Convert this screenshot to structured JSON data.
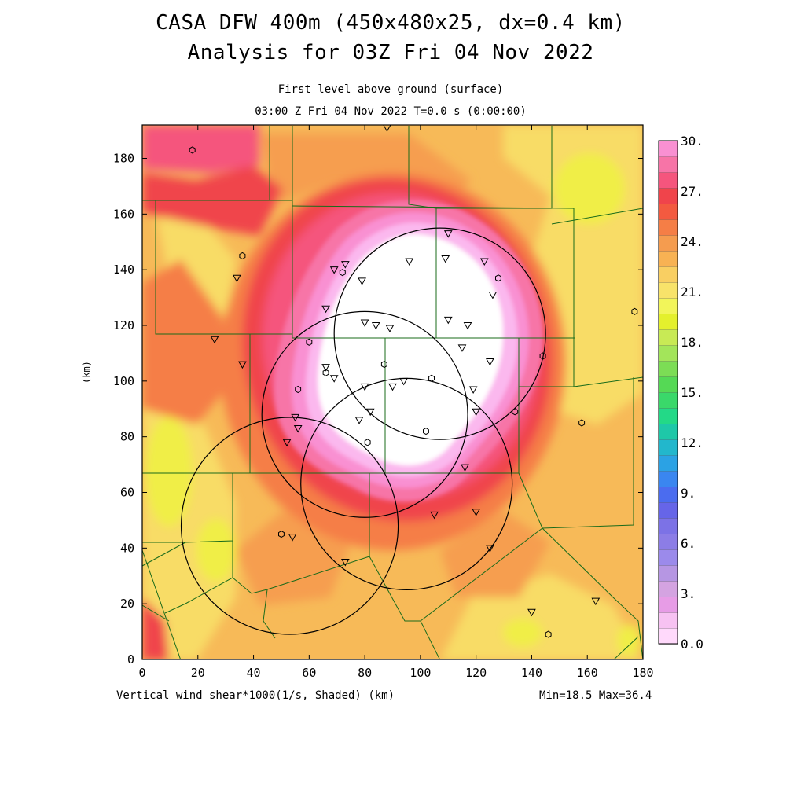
{
  "title": {
    "line1": "CASA DFW 400m (450x480x25, dx=0.4 km)",
    "line2": "Analysis for 03Z Fri 04 Nov 2022"
  },
  "subtitle": {
    "line1": "First level above ground (surface)",
    "line2": "03:00 Z Fri 04 Nov 2022    T=0.0 s (0:00:00)"
  },
  "axes": {
    "ylabel": "(km)",
    "xlabel": "(km)",
    "x_ticks": [
      "0",
      "20",
      "40",
      "60",
      "80",
      "100",
      "120",
      "140",
      "160",
      "180"
    ],
    "y_ticks": [
      "0",
      "20",
      "40",
      "60",
      "80",
      "100",
      "120",
      "140",
      "160",
      "180"
    ],
    "x_range_km": [
      0,
      180
    ],
    "y_range_km": [
      0,
      192
    ]
  },
  "footer": {
    "left": "Vertical wind shear*1000(1/s, Shaded)",
    "unit": "(km)",
    "stats": "Min=18.5 Max=36.4"
  },
  "colorbar": {
    "labels": [
      "30.",
      "27.",
      "24.",
      "21.",
      "18.",
      "15.",
      "12.",
      "9.",
      "6.",
      "3.",
      "0.0"
    ],
    "colors_bottom_to_top": [
      "#ffd9fb",
      "#f7c2f2",
      "#e79ce6",
      "#d4a3e1",
      "#b696e3",
      "#9b8aeb",
      "#8c7de6",
      "#7c72e6",
      "#6665e8",
      "#4b6cef",
      "#3a86f0",
      "#2ba2e4",
      "#22b7cc",
      "#1ec8a8",
      "#23d987",
      "#3ad86a",
      "#55d955",
      "#7cdd55",
      "#a3e55a",
      "#c8ea55",
      "#e4f02d",
      "#f2f55a",
      "#f8e36a",
      "#f9cf62",
      "#f8b253",
      "#f59c4f",
      "#f57e46",
      "#f35a40",
      "#f0444b",
      "#f5557d",
      "#f774a7",
      "#f990d2"
    ]
  },
  "map": {
    "field_colors": {
      "background": "#f7ba58",
      "pale_yellow": "#f8dc66",
      "yellow": "#f0ee46",
      "orange": "#f69e50",
      "dark_orange": "#f57e46",
      "red": "#f0444b",
      "pink": "#f5557d",
      "magenta": "#f774a7",
      "light_magenta": "#f990d2",
      "lilac": "#fbb8ee",
      "white": "#ffffff"
    },
    "boundary_color": "#1a6b1a",
    "radar_rings": [
      {
        "x_km": 107,
        "y_km": 117,
        "r_km": 38
      },
      {
        "x_km": 80,
        "y_km": 88,
        "r_km": 37
      },
      {
        "x_km": 95,
        "y_km": 63,
        "r_km": 38
      },
      {
        "x_km": 53,
        "y_km": 48,
        "r_km": 39
      }
    ],
    "stations": [
      {
        "x_km": 18,
        "y_km": 183,
        "sym": "circle"
      },
      {
        "x_km": 36,
        "y_km": 145,
        "sym": "circle"
      },
      {
        "x_km": 34,
        "y_km": 137,
        "sym": "tri"
      },
      {
        "x_km": 26,
        "y_km": 115,
        "sym": "tri"
      },
      {
        "x_km": 36,
        "y_km": 106,
        "sym": "tri"
      },
      {
        "x_km": 88,
        "y_km": 191,
        "sym": "tri"
      },
      {
        "x_km": 66,
        "y_km": 126,
        "sym": "tri"
      },
      {
        "x_km": 60,
        "y_km": 114,
        "sym": "circle"
      },
      {
        "x_km": 69,
        "y_km": 140,
        "sym": "tri"
      },
      {
        "x_km": 73,
        "y_km": 142,
        "sym": "tri"
      },
      {
        "x_km": 72,
        "y_km": 139,
        "sym": "circle"
      },
      {
        "x_km": 79,
        "y_km": 136,
        "sym": "tri"
      },
      {
        "x_km": 96,
        "y_km": 143,
        "sym": "tri"
      },
      {
        "x_km": 110,
        "y_km": 153,
        "sym": "tri"
      },
      {
        "x_km": 109,
        "y_km": 144,
        "sym": "tri"
      },
      {
        "x_km": 123,
        "y_km": 143,
        "sym": "tri"
      },
      {
        "x_km": 128,
        "y_km": 137,
        "sym": "circle"
      },
      {
        "x_km": 126,
        "y_km": 131,
        "sym": "tri"
      },
      {
        "x_km": 110,
        "y_km": 122,
        "sym": "tri"
      },
      {
        "x_km": 117,
        "y_km": 120,
        "sym": "tri"
      },
      {
        "x_km": 115,
        "y_km": 112,
        "sym": "tri"
      },
      {
        "x_km": 125,
        "y_km": 107,
        "sym": "tri"
      },
      {
        "x_km": 80,
        "y_km": 121,
        "sym": "tri"
      },
      {
        "x_km": 84,
        "y_km": 120,
        "sym": "tri"
      },
      {
        "x_km": 89,
        "y_km": 119,
        "sym": "tri"
      },
      {
        "x_km": 66,
        "y_km": 105,
        "sym": "tri"
      },
      {
        "x_km": 66,
        "y_km": 103,
        "sym": "circle"
      },
      {
        "x_km": 69,
        "y_km": 101,
        "sym": "tri"
      },
      {
        "x_km": 87,
        "y_km": 106,
        "sym": "circle"
      },
      {
        "x_km": 56,
        "y_km": 97,
        "sym": "circle"
      },
      {
        "x_km": 80,
        "y_km": 98,
        "sym": "tri"
      },
      {
        "x_km": 90,
        "y_km": 98,
        "sym": "tri"
      },
      {
        "x_km": 94,
        "y_km": 100,
        "sym": "tri"
      },
      {
        "x_km": 104,
        "y_km": 101,
        "sym": "circle"
      },
      {
        "x_km": 119,
        "y_km": 97,
        "sym": "tri"
      },
      {
        "x_km": 120,
        "y_km": 89,
        "sym": "tri"
      },
      {
        "x_km": 134,
        "y_km": 89,
        "sym": "circle"
      },
      {
        "x_km": 144,
        "y_km": 109,
        "sym": "circle"
      },
      {
        "x_km": 177,
        "y_km": 125,
        "sym": "circle"
      },
      {
        "x_km": 158,
        "y_km": 85,
        "sym": "circle"
      },
      {
        "x_km": 55,
        "y_km": 87,
        "sym": "tri"
      },
      {
        "x_km": 56,
        "y_km": 83,
        "sym": "tri"
      },
      {
        "x_km": 52,
        "y_km": 78,
        "sym": "tri"
      },
      {
        "x_km": 78,
        "y_km": 86,
        "sym": "tri"
      },
      {
        "x_km": 82,
        "y_km": 89,
        "sym": "tri"
      },
      {
        "x_km": 81,
        "y_km": 78,
        "sym": "circle"
      },
      {
        "x_km": 102,
        "y_km": 82,
        "sym": "circle"
      },
      {
        "x_km": 116,
        "y_km": 69,
        "sym": "tri"
      },
      {
        "x_km": 105,
        "y_km": 52,
        "sym": "tri"
      },
      {
        "x_km": 120,
        "y_km": 53,
        "sym": "tri"
      },
      {
        "x_km": 125,
        "y_km": 40,
        "sym": "tri"
      },
      {
        "x_km": 50,
        "y_km": 45,
        "sym": "circle"
      },
      {
        "x_km": 54,
        "y_km": 44,
        "sym": "tri"
      },
      {
        "x_km": 73,
        "y_km": 35,
        "sym": "tri"
      },
      {
        "x_km": 140,
        "y_km": 17,
        "sym": "tri"
      },
      {
        "x_km": 146,
        "y_km": 9,
        "sym": "circle"
      },
      {
        "x_km": 163,
        "y_km": 21,
        "sym": "tri"
      }
    ]
  }
}
